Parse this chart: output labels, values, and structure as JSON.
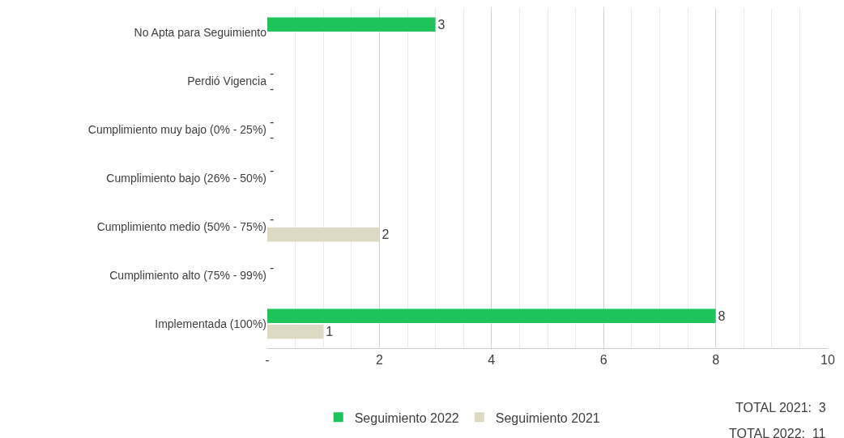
{
  "chart_data": {
    "type": "bar",
    "orientation": "horizontal",
    "categories": [
      "No Apta para Seguimiento",
      "Perdió Vigencia",
      "Cumplimiento muy bajo (0% - 25%)",
      "Cumplimiento bajo (26% - 50%)",
      "Cumplimiento medio (50% - 75%)",
      "Cumplimiento alto (75% - 99%)",
      "Implementada (100%)"
    ],
    "series": [
      {
        "name": "Seguimiento 2022",
        "color": "#1fc35c",
        "values": [
          3,
          0,
          0,
          0,
          0,
          0,
          8
        ],
        "value_labels": [
          "3",
          "-",
          "-",
          "-",
          "-",
          "-",
          "8"
        ]
      },
      {
        "name": "Seguimiento 2021",
        "color": "#ddd9c3",
        "values": [
          null,
          0,
          0,
          null,
          2,
          null,
          1
        ],
        "value_labels": [
          null,
          "-",
          "-",
          null,
          "2",
          null,
          "1"
        ]
      }
    ],
    "xlim": [
      0,
      10
    ],
    "xticks": [
      {
        "value": 0,
        "label": "-"
      },
      2,
      4,
      6,
      8,
      10
    ],
    "grid": "x",
    "legend": "bottom",
    "annotations": [
      "TOTAL 2021:  3",
      "TOTAL 2022:  11"
    ]
  }
}
